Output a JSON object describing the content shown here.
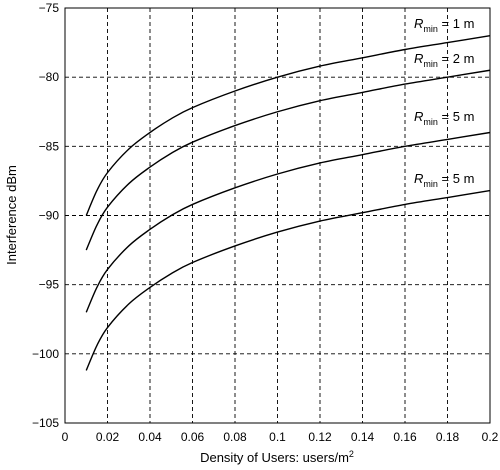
{
  "chart_data": {
    "type": "line",
    "xlabel": "Density of Users: users/m",
    "xlabel_sup": "2",
    "ylabel": "Interference dBm",
    "xlim": [
      0,
      0.2
    ],
    "ylim": [
      -105,
      -75
    ],
    "xticks": [
      0,
      0.02,
      0.04,
      0.06,
      0.08,
      0.1,
      0.12,
      0.14,
      0.16,
      0.18,
      0.2
    ],
    "xtick_labels": [
      "0",
      "0.02",
      "0.04",
      "0.06",
      "0.08",
      "0.1",
      "0.12",
      "0.14",
      "0.16",
      "0.18",
      "0.2"
    ],
    "yticks": [
      -75,
      -80,
      -85,
      -90,
      -95,
      -100,
      -105
    ],
    "ytick_labels": [
      "−75",
      "−80",
      "−85",
      "−90",
      "−95",
      "−100",
      "−105"
    ],
    "grid": true,
    "series": [
      {
        "annotation": {
          "prefix": "R",
          "sub": "min",
          "suffix": " = 1 m"
        },
        "x": [
          0.01,
          0.015,
          0.02,
          0.03,
          0.04,
          0.05,
          0.06,
          0.08,
          0.1,
          0.12,
          0.14,
          0.16,
          0.18,
          0.2
        ],
        "y": [
          -90.0,
          -88.2,
          -86.9,
          -85.2,
          -84.0,
          -83.0,
          -82.2,
          -81.0,
          -80.0,
          -79.2,
          -78.6,
          -78.0,
          -77.5,
          -77.0
        ]
      },
      {
        "annotation": {
          "prefix": "R",
          "sub": "min",
          "suffix": " = 2 m"
        },
        "x": [
          0.01,
          0.015,
          0.02,
          0.03,
          0.04,
          0.05,
          0.06,
          0.08,
          0.1,
          0.12,
          0.14,
          0.16,
          0.18,
          0.2
        ],
        "y": [
          -92.5,
          -90.7,
          -89.4,
          -87.7,
          -86.5,
          -85.5,
          -84.7,
          -83.5,
          -82.5,
          -81.7,
          -81.1,
          -80.5,
          -80.0,
          -79.5
        ]
      },
      {
        "annotation": {
          "prefix": "R",
          "sub": "min",
          "suffix": " = 5 m"
        },
        "x": [
          0.01,
          0.015,
          0.02,
          0.03,
          0.04,
          0.05,
          0.06,
          0.08,
          0.1,
          0.12,
          0.14,
          0.16,
          0.18,
          0.2
        ],
        "y": [
          -97.0,
          -95.2,
          -93.9,
          -92.2,
          -91.0,
          -90.0,
          -89.2,
          -88.0,
          -87.0,
          -86.2,
          -85.6,
          -85.0,
          -84.5,
          -84.0
        ]
      },
      {
        "annotation": {
          "prefix": "R",
          "sub": "min",
          "suffix": " = 5 m"
        },
        "x": [
          0.01,
          0.015,
          0.02,
          0.03,
          0.04,
          0.05,
          0.06,
          0.08,
          0.1,
          0.12,
          0.14,
          0.16,
          0.18,
          0.2
        ],
        "y": [
          -101.2,
          -99.4,
          -98.1,
          -96.4,
          -95.2,
          -94.2,
          -93.4,
          -92.2,
          -91.2,
          -90.4,
          -89.8,
          -89.2,
          -88.7,
          -88.2
        ]
      }
    ]
  }
}
